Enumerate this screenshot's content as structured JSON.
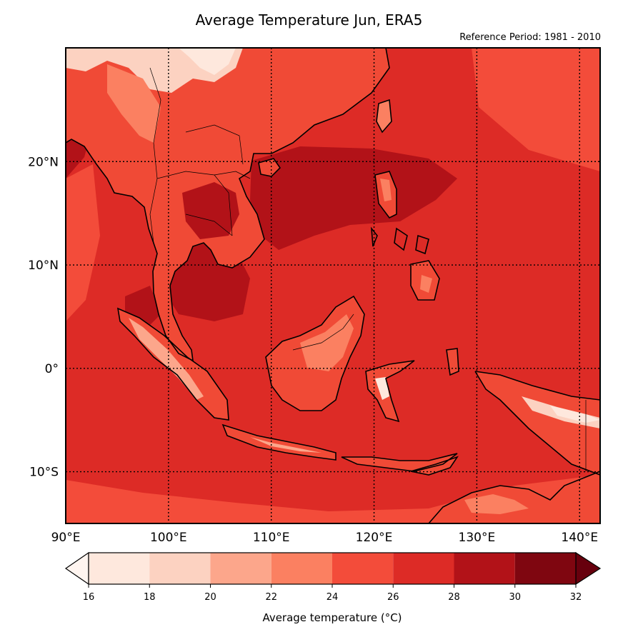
{
  "title": "Average Temperature Jun, ERA5",
  "subtitle": "Reference Period: 1981 - 2010",
  "map": {
    "lon_range": [
      90,
      142
    ],
    "lat_range": [
      -15,
      31
    ],
    "lon_ticks": [
      {
        "value": 90,
        "label": "90°E"
      },
      {
        "value": 100,
        "label": "100°E"
      },
      {
        "value": 110,
        "label": "110°E"
      },
      {
        "value": 120,
        "label": "120°E"
      },
      {
        "value": 130,
        "label": "130°E"
      },
      {
        "value": 140,
        "label": "140°E"
      }
    ],
    "lat_ticks": [
      {
        "value": 20,
        "label": "20°N"
      },
      {
        "value": 10,
        "label": "10°N"
      },
      {
        "value": 0,
        "label": "0°"
      },
      {
        "value": -10,
        "label": "10°S"
      }
    ],
    "ocean_color": "#dd2b26",
    "gridlines": "dotted"
  },
  "colorbar": {
    "label": "Average temperature (°C)",
    "extend": "both",
    "bins": [
      {
        "from": 16,
        "to": 18,
        "color": "#fee8dd"
      },
      {
        "from": 18,
        "to": 20,
        "color": "#fcd2c1"
      },
      {
        "from": 20,
        "to": 22,
        "color": "#fca68b"
      },
      {
        "from": 22,
        "to": 24,
        "color": "#fb8061"
      },
      {
        "from": 24,
        "to": 26,
        "color": "#f34c3a"
      },
      {
        "from": 26,
        "to": 28,
        "color": "#dd2b26"
      },
      {
        "from": 28,
        "to": 30,
        "color": "#b21218"
      },
      {
        "from": 30,
        "to": 32,
        "color": "#7f0610"
      }
    ],
    "ticks": [
      {
        "value": 16,
        "label": "16"
      },
      {
        "value": 18,
        "label": "18"
      },
      {
        "value": 20,
        "label": "20"
      },
      {
        "value": 22,
        "label": "22"
      },
      {
        "value": 24,
        "label": "24"
      },
      {
        "value": 26,
        "label": "26"
      },
      {
        "value": 28,
        "label": "28"
      },
      {
        "value": 30,
        "label": "30"
      },
      {
        "value": 32,
        "label": "32"
      }
    ],
    "under_color": "#fff5f0",
    "over_color": "#67000d"
  }
}
